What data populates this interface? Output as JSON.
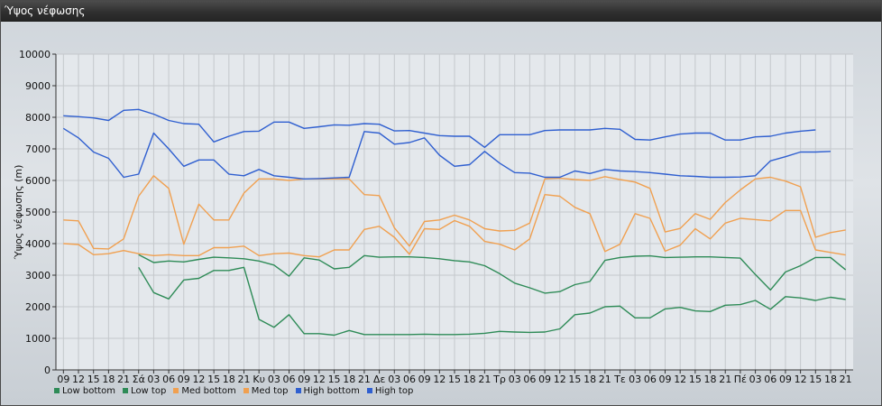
{
  "window": {
    "title": "Ύψος νέφωσης"
  },
  "chart_data": {
    "type": "line",
    "title": "Ύψος νέφωσης",
    "ylabel": "Ύψος νέφωσης (m)",
    "xlabel": "",
    "ylim": [
      0,
      10000
    ],
    "yticks": [
      0,
      1000,
      2000,
      3000,
      4000,
      5000,
      6000,
      7000,
      8000,
      9000,
      10000
    ],
    "grid": true,
    "legend_position": "bottom-left",
    "categories": [
      "09",
      "12",
      "15",
      "18",
      "21",
      "Σά",
      "03",
      "06",
      "09",
      "12",
      "15",
      "18",
      "21",
      "Κυ",
      "03",
      "06",
      "09",
      "12",
      "15",
      "18",
      "21",
      "Δε",
      "03",
      "06",
      "09",
      "12",
      "15",
      "18",
      "21",
      "Τρ",
      "03",
      "06",
      "09",
      "12",
      "15",
      "18",
      "21",
      "Τε",
      "03",
      "06",
      "09",
      "12",
      "15",
      "18",
      "21",
      "Πέ",
      "03",
      "06",
      "09",
      "12",
      "15",
      "18",
      "21"
    ],
    "series": [
      {
        "name": "Low bottom",
        "color": "#2e8b57",
        "values": [
          null,
          null,
          null,
          null,
          null,
          3250,
          2450,
          2250,
          2850,
          2900,
          3150,
          3150,
          3250,
          1600,
          1350,
          1750,
          1150,
          1150,
          1100,
          1250,
          1120,
          1120,
          1120,
          1120,
          1130,
          1120,
          1120,
          1130,
          1160,
          1220,
          1200,
          1190,
          1200,
          1300,
          1750,
          1800,
          2000,
          2020,
          1650,
          1650,
          1930,
          1980,
          1870,
          1850,
          2050,
          2070,
          2200,
          1920,
          2320,
          2280,
          2200,
          2300,
          2230
        ]
      },
      {
        "name": "Low top",
        "color": "#2e8b57",
        "values": [
          null,
          null,
          null,
          null,
          null,
          3650,
          3400,
          3450,
          3420,
          3500,
          3570,
          3550,
          3520,
          3450,
          3320,
          2970,
          3550,
          3480,
          3200,
          3250,
          3620,
          3570,
          3580,
          3580,
          3560,
          3520,
          3460,
          3420,
          3300,
          3050,
          2750,
          2600,
          2430,
          2480,
          2700,
          2800,
          3470,
          3560,
          3600,
          3610,
          3560,
          3570,
          3580,
          3580,
          3560,
          3540,
          3020,
          2530,
          3100,
          3300,
          3560,
          3560,
          3170
        ]
      },
      {
        "name": "Med bottom",
        "color": "#f0a050",
        "values": [
          4000,
          3970,
          3650,
          3680,
          3780,
          3680,
          3620,
          3650,
          3620,
          3620,
          3870,
          3870,
          3920,
          3620,
          3680,
          3700,
          3620,
          3580,
          3800,
          3800,
          4450,
          4550,
          4200,
          3660,
          4470,
          4450,
          4730,
          4550,
          4070,
          3980,
          3800,
          4150,
          5550,
          5500,
          5150,
          4950,
          3750,
          3980,
          4950,
          4800,
          3760,
          3950,
          4470,
          4150,
          4650,
          4800,
          4760,
          4720,
          5050,
          5050,
          3800,
          3720,
          3640
        ]
      },
      {
        "name": "Med top",
        "color": "#f0a050",
        "values": [
          4750,
          4720,
          3850,
          3830,
          4150,
          5500,
          6150,
          5750,
          3980,
          5250,
          4750,
          4750,
          5600,
          6050,
          6050,
          6000,
          6050,
          6050,
          6050,
          6050,
          5550,
          5520,
          4500,
          3920,
          4700,
          4750,
          4900,
          4750,
          4470,
          4400,
          4420,
          4650,
          6050,
          6070,
          6030,
          6000,
          6120,
          6030,
          5950,
          5750,
          4370,
          4480,
          4950,
          4770,
          5300,
          5700,
          6050,
          6100,
          5980,
          5800,
          4200,
          4350,
          4430
        ]
      },
      {
        "name": "High bottom",
        "color": "#2f5fd0",
        "values": [
          7650,
          7350,
          6900,
          6700,
          6100,
          6200,
          7500,
          7000,
          6450,
          6650,
          6650,
          6200,
          6150,
          6350,
          6150,
          6100,
          6050,
          6060,
          6080,
          6100,
          7550,
          7500,
          7150,
          7200,
          7350,
          6800,
          6450,
          6500,
          6920,
          6550,
          6250,
          6230,
          6100,
          6100,
          6300,
          6220,
          6350,
          6300,
          6280,
          6250,
          6200,
          6150,
          6130,
          6100,
          6100,
          6110,
          6150,
          6620,
          6750,
          6900,
          6900,
          6920,
          null
        ]
      },
      {
        "name": "High top",
        "color": "#2f5fd0",
        "values": [
          8050,
          8020,
          7980,
          7900,
          8220,
          8250,
          8100,
          7900,
          7800,
          7780,
          7220,
          7400,
          7550,
          7560,
          7850,
          7850,
          7650,
          7700,
          7760,
          7750,
          7800,
          7780,
          7570,
          7580,
          7500,
          7420,
          7400,
          7400,
          7050,
          7450,
          7450,
          7450,
          7580,
          7600,
          7600,
          7600,
          7650,
          7620,
          7300,
          7280,
          7380,
          7470,
          7500,
          7500,
          7280,
          7280,
          7380,
          7400,
          7500,
          7560,
          7600,
          null,
          null
        ]
      }
    ]
  }
}
